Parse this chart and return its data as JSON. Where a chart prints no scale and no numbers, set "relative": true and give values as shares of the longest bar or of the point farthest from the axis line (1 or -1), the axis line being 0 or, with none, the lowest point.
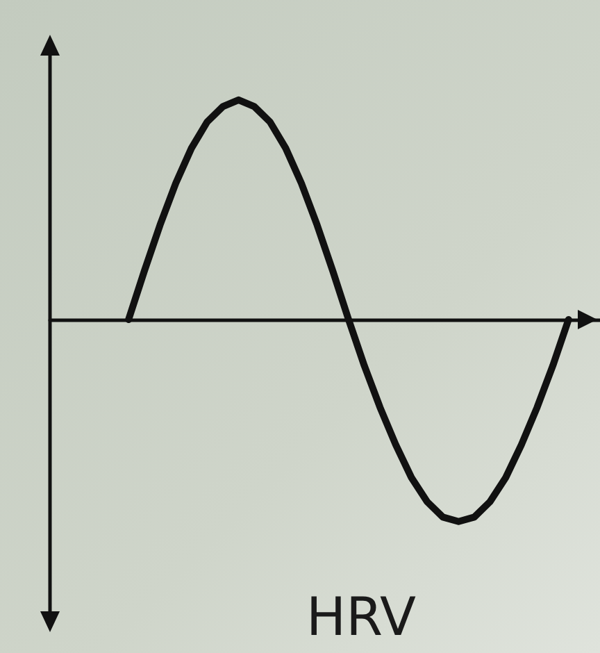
{
  "chart_data": {
    "type": "line",
    "relative": true,
    "xlabel": "HRV",
    "categories": [
      null,
      null,
      null,
      null,
      null,
      null,
      null,
      null,
      null,
      null,
      null,
      null,
      null,
      null,
      null,
      null,
      null,
      null,
      null,
      null,
      null,
      null,
      null,
      null,
      null,
      null,
      null,
      null,
      null,
      null,
      null,
      null,
      null,
      null,
      null,
      null
    ],
    "series": [
      {
        "color": "#111111",
        "values": [
          null,
          null,
          null,
          null,
          null,
          0,
          0.22,
          0.43,
          0.62,
          0.78,
          0.9,
          0.97,
          1,
          0.97,
          0.9,
          0.78,
          0.62,
          0.43,
          0.22,
          0,
          -0.21,
          -0.4,
          -0.57,
          -0.72,
          -0.83,
          -0.9,
          -0.92,
          -0.9,
          -0.83,
          -0.72,
          -0.57,
          -0.4,
          -0.21,
          0,
          null,
          null
        ]
      }
    ],
    "grid": false,
    "marker": "none",
    "line_style": "solid",
    "tick_labels": false
  }
}
